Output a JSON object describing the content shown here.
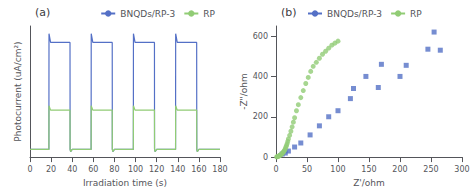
{
  "chart_data": [
    {
      "type": "line",
      "title": "(a)",
      "xlabel": "Irradiation time (s)",
      "ylabel": "Photocurrent (uA/cm²)",
      "x": [
        0,
        17.9,
        18,
        19.5,
        37.9,
        38,
        38.5,
        40,
        57.9,
        58,
        59.5,
        77.9,
        78,
        78.5,
        80,
        97.9,
        98,
        99.5,
        117.9,
        118,
        118.5,
        120,
        137.9,
        138,
        139.5,
        157.9,
        158,
        158.5,
        160,
        180
      ],
      "series": [
        {
          "name": "BNQDs/RP-3",
          "values": [
            0.02,
            0.02,
            1.08,
            1.0,
            1.0,
            0.02,
            0.0,
            0.02,
            0.02,
            1.08,
            1.0,
            1.0,
            0.02,
            0.0,
            0.02,
            0.02,
            1.08,
            1.0,
            1.0,
            0.02,
            0.0,
            0.02,
            0.02,
            1.08,
            1.0,
            1.0,
            0.02,
            0.0,
            0.02,
            0.02
          ]
        },
        {
          "name": "RP",
          "values": [
            0.02,
            0.02,
            0.42,
            0.38,
            0.38,
            0.02,
            0.0,
            0.02,
            0.02,
            0.42,
            0.38,
            0.38,
            0.02,
            0.0,
            0.02,
            0.02,
            0.42,
            0.38,
            0.38,
            0.02,
            0.0,
            0.02,
            0.02,
            0.42,
            0.38,
            0.38,
            0.02,
            0.0,
            0.02,
            0.02
          ]
        }
      ],
      "xlim": [
        0,
        180
      ],
      "ylim": [
        -0.05,
        1.15
      ],
      "xticks": [
        0,
        20,
        40,
        60,
        80,
        100,
        120,
        140,
        160,
        180
      ],
      "legend": "upper right",
      "grid": false,
      "tick_labels": "x"
    },
    {
      "type": "scatter",
      "title": "(b)",
      "xlabel": "Z'/ohm",
      "ylabel": "-Z\"/ohm",
      "series": [
        {
          "name": "BNQDs/RP-3",
          "marker": "square",
          "x": [
            10,
            15,
            20,
            30,
            40,
            55,
            70,
            85,
            100,
            120,
            125,
            145,
            165,
            170,
            200,
            210,
            245,
            255,
            265
          ],
          "values": [
            15,
            20,
            30,
            50,
            70,
            110,
            155,
            200,
            230,
            290,
            340,
            400,
            345,
            460,
            400,
            455,
            535,
            620,
            530
          ]
        },
        {
          "name": "RP",
          "marker": "circle",
          "x": [
            1,
            2,
            3,
            4,
            5,
            6,
            7,
            8,
            9,
            10,
            11,
            12,
            13,
            14,
            15,
            16,
            17,
            18,
            19,
            20,
            22,
            24,
            26,
            28,
            30,
            33,
            36,
            40,
            44,
            48,
            52,
            56,
            60,
            65,
            70,
            75,
            80,
            85,
            90,
            95,
            100
          ],
          "values": [
            1,
            2,
            3,
            5,
            6,
            8,
            10,
            13,
            15,
            18,
            22,
            26,
            30,
            35,
            42,
            50,
            58,
            67,
            78,
            90,
            108,
            128,
            150,
            173,
            195,
            230,
            260,
            295,
            330,
            365,
            395,
            425,
            450,
            470,
            490,
            510,
            525,
            540,
            555,
            565,
            575
          ]
        }
      ],
      "xlim": [
        0,
        300
      ],
      "ylim": [
        0,
        650
      ],
      "xticks": [
        0,
        50,
        100,
        150,
        200,
        250,
        300
      ],
      "yticks": [
        0,
        200,
        400,
        600
      ],
      "legend": "upper left",
      "grid": false
    }
  ]
}
